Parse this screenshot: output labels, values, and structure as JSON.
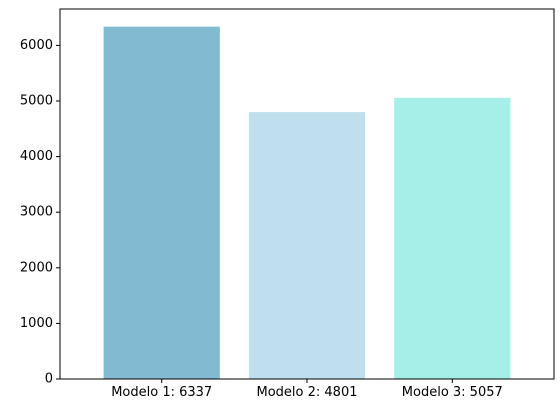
{
  "chart_data": {
    "type": "bar",
    "categories": [
      "Modelo 1: 6337",
      "Modelo 2: 4801",
      "Modelo 3: 5057"
    ],
    "values": [
      6337,
      4801,
      5057
    ],
    "bar_colors": [
      "#82bbd1",
      "#bfdfee",
      "#a6efe8"
    ],
    "ylim": [
      0,
      6655
    ],
    "yticks": [
      0,
      1000,
      2000,
      3000,
      4000,
      5000,
      6000
    ],
    "grid": false,
    "title": "",
    "xlabel": "",
    "ylabel": ""
  }
}
